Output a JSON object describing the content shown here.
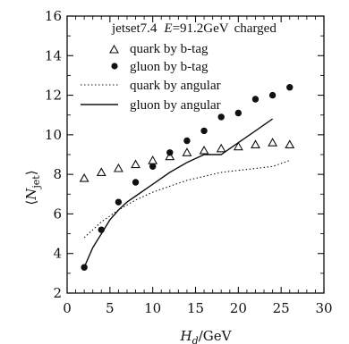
{
  "chart_data": {
    "type": "scatter",
    "header": {
      "generator": "jetset7.4",
      "energy_symbol": "E",
      "energy_value": "=91.2GeV",
      "sample": "charged"
    },
    "xlabel": {
      "main": "H",
      "sub": "d",
      "unit": "/GeV"
    },
    "ylabel": {
      "open": "⟨",
      "main": "N",
      "sub": "jet",
      "close": "⟩"
    },
    "xlim": [
      0,
      30
    ],
    "ylim": [
      2,
      16
    ],
    "x_ticks": [
      0,
      5,
      10,
      15,
      20,
      25,
      30
    ],
    "y_ticks": [
      2,
      4,
      6,
      8,
      10,
      12,
      14,
      16
    ],
    "x_tick_labels": [
      "0",
      "5",
      "10",
      "15",
      "20",
      "25",
      "30"
    ],
    "y_tick_labels": [
      "2",
      "4",
      "6",
      "8",
      "10",
      "12",
      "14",
      "16"
    ],
    "legend_position": "top-left",
    "grid": false,
    "series": [
      {
        "name": "quark by b-tag",
        "marker": "open-triangle",
        "x": [
          2,
          4,
          6,
          8,
          10,
          12,
          14,
          16,
          18,
          20,
          22,
          24,
          26
        ],
        "y": [
          7.8,
          8.1,
          8.3,
          8.5,
          8.7,
          8.9,
          9.1,
          9.2,
          9.3,
          9.4,
          9.5,
          9.6,
          9.5
        ]
      },
      {
        "name": "gluon by b-tag",
        "marker": "filled-circle",
        "x": [
          2,
          4,
          6,
          8,
          10,
          12,
          14,
          16,
          18,
          20,
          22,
          24,
          26
        ],
        "y": [
          3.3,
          5.2,
          6.6,
          7.6,
          8.4,
          9.1,
          9.7,
          10.2,
          10.9,
          11.1,
          11.8,
          12.0,
          12.4
        ]
      },
      {
        "name": "quark by angular",
        "style": "dotted",
        "x": [
          2,
          4,
          6,
          8,
          10,
          12,
          14,
          16,
          18,
          20,
          22,
          24,
          26
        ],
        "y": [
          4.8,
          5.6,
          6.2,
          6.7,
          7.1,
          7.4,
          7.7,
          7.9,
          8.1,
          8.2,
          8.3,
          8.4,
          8.7
        ]
      },
      {
        "name": "gluon by angular",
        "style": "solid",
        "x": [
          2,
          3,
          4,
          5,
          6,
          7,
          8,
          10,
          12,
          14,
          16,
          18,
          20,
          22,
          24
        ],
        "y": [
          3.3,
          4.3,
          5.0,
          5.7,
          6.2,
          6.6,
          6.9,
          7.5,
          8.1,
          8.6,
          9.0,
          9.0,
          9.6,
          10.2,
          10.8
        ]
      }
    ]
  }
}
